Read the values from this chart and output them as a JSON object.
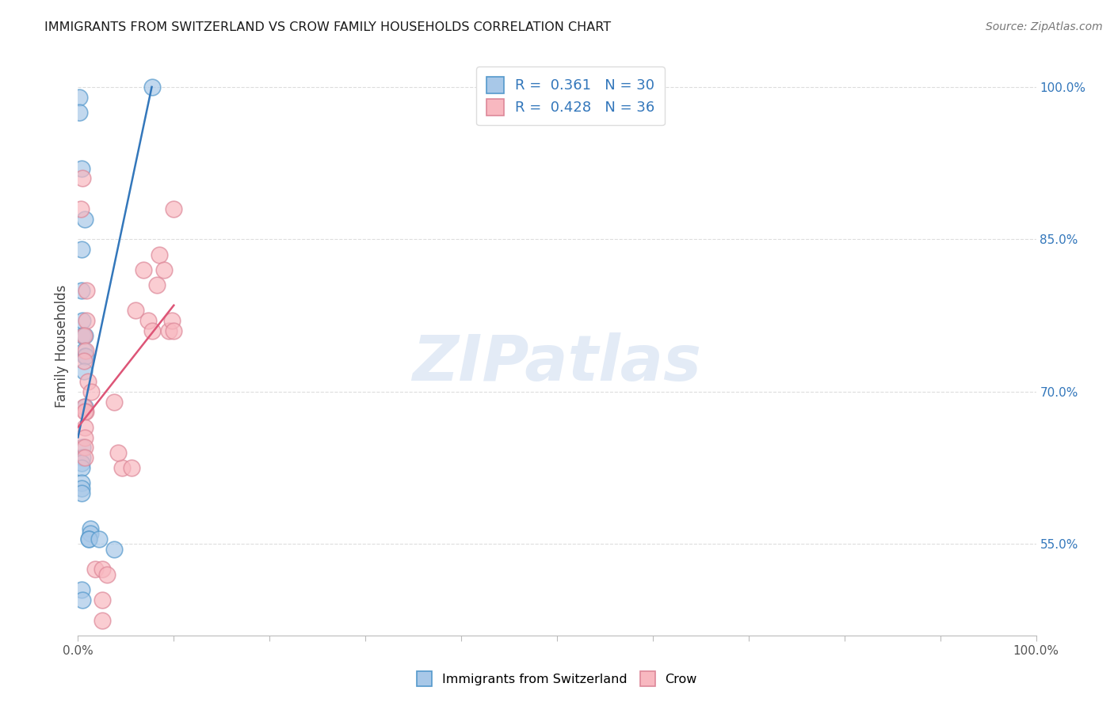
{
  "title": "IMMIGRANTS FROM SWITZERLAND VS CROW FAMILY HOUSEHOLDS CORRELATION CHART",
  "source": "Source: ZipAtlas.com",
  "ylabel": "Family Households",
  "ylabel_right_ticks": [
    "55.0%",
    "70.0%",
    "85.0%",
    "100.0%"
  ],
  "ylabel_right_values": [
    55.0,
    70.0,
    85.0,
    100.0
  ],
  "xlim": [
    0.0,
    100.0
  ],
  "ylim": [
    46.0,
    103.0
  ],
  "legend_r1": "R =  0.361",
  "legend_n1": "N = 30",
  "legend_r2": "R =  0.428",
  "legend_n2": "N = 36",
  "blue_fill": "#a8c8e8",
  "blue_edge": "#5599cc",
  "pink_fill": "#f8b8c0",
  "pink_edge": "#dd8899",
  "blue_line": "#3377bb",
  "pink_line": "#dd5577",
  "text_blue": "#3377bb",
  "watermark": "ZIPatlas",
  "blue_scatter_x": [
    0.1,
    0.1,
    0.4,
    0.7,
    0.4,
    0.4,
    0.5,
    0.5,
    0.7,
    0.6,
    0.7,
    0.8,
    0.6,
    0.7,
    0.5,
    0.5,
    0.4,
    0.4,
    0.4,
    0.4,
    0.4,
    1.3,
    1.3,
    1.1,
    1.1,
    2.2,
    3.8,
    7.7,
    0.4,
    0.5
  ],
  "blue_scatter_y": [
    99.0,
    97.5,
    92.0,
    87.0,
    84.0,
    80.0,
    77.0,
    75.5,
    75.5,
    74.0,
    73.5,
    73.5,
    72.0,
    68.5,
    64.5,
    63.5,
    63.0,
    62.5,
    61.0,
    60.5,
    60.0,
    56.5,
    56.0,
    55.5,
    55.5,
    55.5,
    54.5,
    100.0,
    50.5,
    49.5
  ],
  "pink_scatter_x": [
    0.5,
    0.3,
    0.9,
    0.9,
    0.6,
    0.8,
    0.6,
    0.6,
    0.8,
    0.7,
    0.7,
    0.7,
    0.7,
    0.7,
    1.0,
    1.4,
    3.8,
    4.6,
    5.6,
    6.0,
    6.8,
    7.3,
    7.7,
    8.2,
    8.5,
    9.0,
    9.5,
    9.8,
    10.0,
    10.0,
    1.8,
    2.5,
    2.5,
    2.5,
    3.0,
    4.2
  ],
  "pink_scatter_y": [
    91.0,
    88.0,
    80.0,
    77.0,
    75.5,
    74.0,
    73.0,
    68.5,
    68.0,
    68.0,
    66.5,
    65.5,
    64.5,
    63.5,
    71.0,
    70.0,
    69.0,
    62.5,
    62.5,
    78.0,
    82.0,
    77.0,
    76.0,
    80.5,
    83.5,
    82.0,
    76.0,
    77.0,
    88.0,
    76.0,
    52.5,
    52.5,
    49.5,
    47.5,
    52.0,
    64.0
  ],
  "blue_trend_x": [
    0.0,
    7.7
  ],
  "blue_trend_y": [
    65.5,
    100.0
  ],
  "pink_trend_x": [
    0.0,
    10.0
  ],
  "pink_trend_y": [
    66.5,
    78.5
  ],
  "grid_color": "#dddddd",
  "background_color": "#ffffff"
}
